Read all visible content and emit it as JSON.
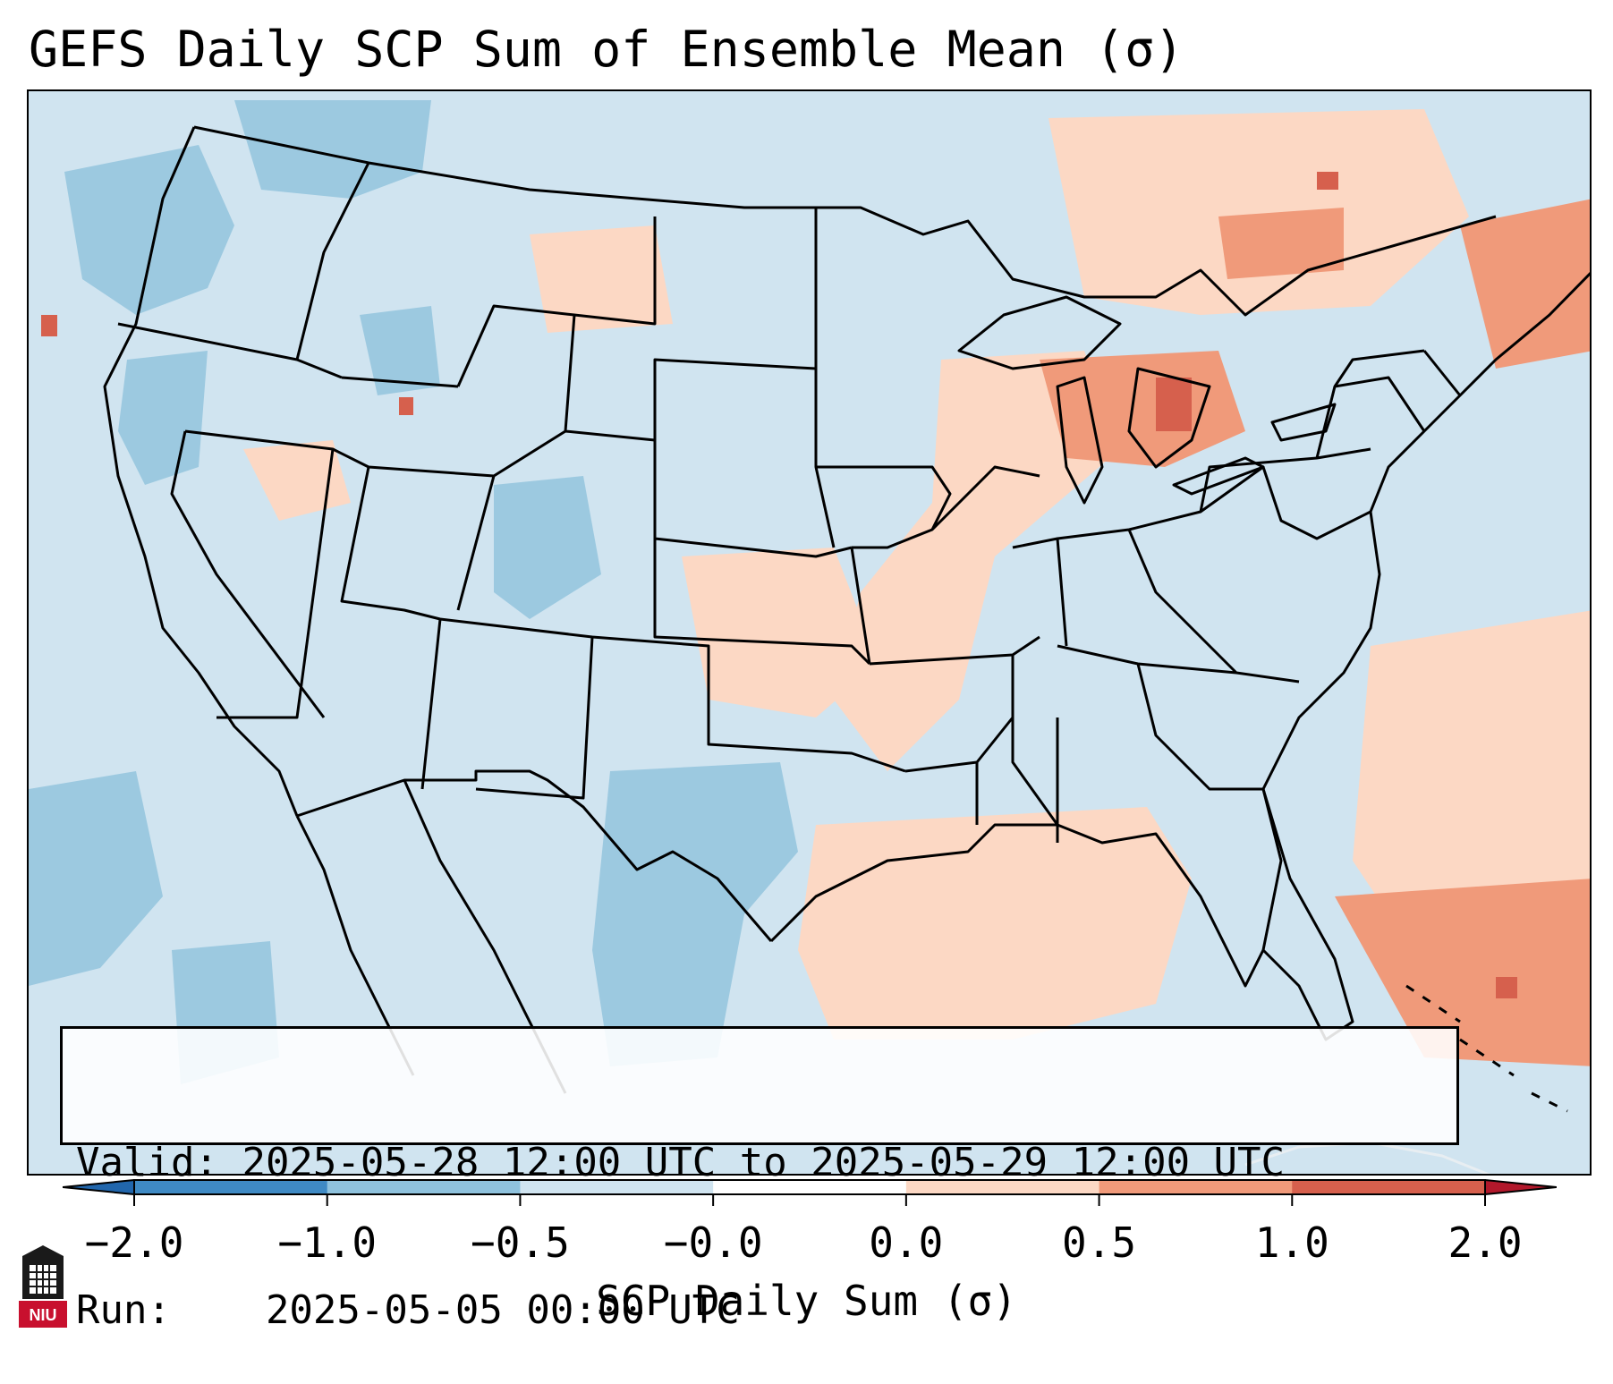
{
  "title": "GEFS Daily SCP Sum of Ensemble Mean (σ)",
  "info": {
    "valid_label": "Valid:",
    "valid_value": "2025-05-28 12:00 UTC to 2025-05-29 12:00 UTC",
    "run_label": "Run:",
    "run_value": "2025-05-05 00:00 UTC"
  },
  "colorbar": {
    "label": "SCP Daily Sum (σ)",
    "ticks": [
      "−2.0",
      "−1.0",
      "−0.5",
      "−0.0",
      "0.0",
      "0.5",
      "1.0",
      "2.0"
    ],
    "bin_colors": [
      "#3f8ac4",
      "#8fc2dd",
      "#d0e4f0",
      "#ffffff",
      "#fcd8c4",
      "#f09a7a",
      "#d6604d"
    ],
    "under_color": "#2166ac",
    "over_color": "#b2182b"
  },
  "map": {
    "projection": "Lambert conformal, CONUS",
    "background_color": "#d0e4f0",
    "boundaries_color": "#000000"
  },
  "logo": {
    "text": "NIU"
  }
}
